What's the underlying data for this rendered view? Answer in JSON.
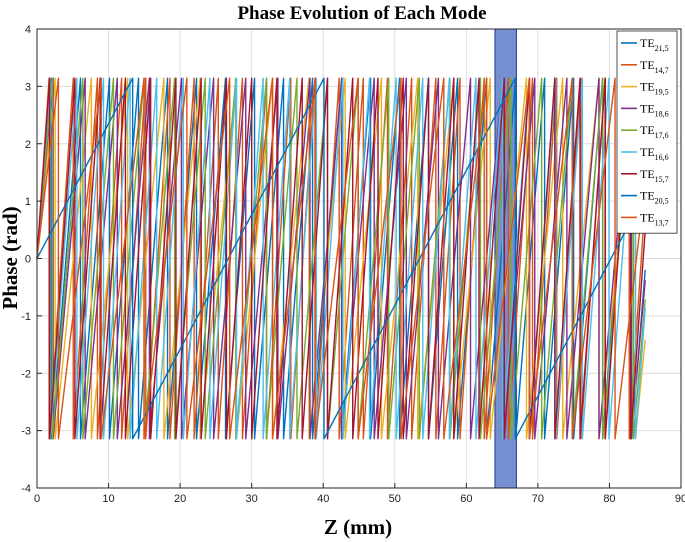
{
  "chart_data": {
    "type": "line",
    "title": "Phase Evolution of Each Mode",
    "xlabel": "Z (mm)",
    "ylabel": "Phase (rad)",
    "xlim": [
      0,
      90
    ],
    "ylim": [
      -4,
      4
    ],
    "xticks": [
      "0",
      "10",
      "20",
      "30",
      "40",
      "50",
      "60",
      "70",
      "80",
      "90"
    ],
    "yticks": [
      "4",
      "3",
      "2",
      "1",
      "0",
      "-1",
      "-2",
      "-3",
      "-4"
    ],
    "grid": true,
    "legend_position": "top-right",
    "wrap_range": [
      -3.1416,
      3.1416
    ],
    "z_end": 85,
    "highlight_region": {
      "x_start": 64,
      "x_end": 67,
      "color": "#4f6fc4"
    },
    "series": [
      {
        "name": "TE",
        "subscript": "21,5",
        "color": "#0072BD",
        "slope_rad_per_mm": 1.55
      },
      {
        "name": "TE",
        "subscript": "14,7",
        "color": "#D95319",
        "slope_rad_per_mm": 1.86
      },
      {
        "name": "TE",
        "subscript": "19,5",
        "color": "#EDB120",
        "slope_rad_per_mm": 1.24
      },
      {
        "name": "TE",
        "subscript": "18,6",
        "color": "#7E2F8E",
        "slope_rad_per_mm": 1.4
      },
      {
        "name": "TE",
        "subscript": "17,6",
        "color": "#77AC30",
        "slope_rad_per_mm": 1.47
      },
      {
        "name": "TE",
        "subscript": "16,6",
        "color": "#4DBEEE",
        "slope_rad_per_mm": 1.69
      },
      {
        "name": "TE",
        "subscript": "15,7",
        "color": "#A2142F",
        "slope_rad_per_mm": 1.78
      },
      {
        "name": "TE",
        "subscript": "20,5",
        "color": "#0072BD",
        "slope_rad_per_mm": 0.235
      },
      {
        "name": "TE",
        "subscript": "13,7",
        "color": "#D95319",
        "slope_rad_per_mm": 1.05
      }
    ]
  }
}
